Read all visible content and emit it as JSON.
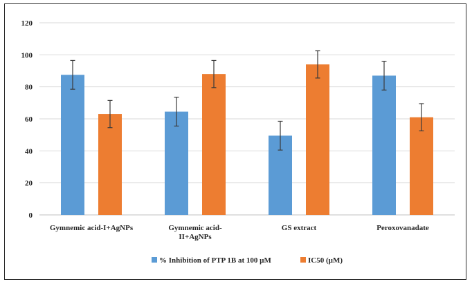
{
  "chart_data": {
    "type": "bar",
    "title": "",
    "xlabel": "",
    "ylabel": "",
    "ylim": [
      0,
      120
    ],
    "yticks": [
      0,
      20,
      40,
      60,
      80,
      100,
      120
    ],
    "grid": true,
    "legend_position": "bottom",
    "categories": [
      [
        "Gymnemic acid-I+AgNPs"
      ],
      [
        "Gymnemic acid-",
        "II+AgNPs"
      ],
      [
        "GS extract"
      ],
      [
        "Peroxovanadate"
      ]
    ],
    "series": [
      {
        "name": "% Inhibition of PTP 1B at 100 µM",
        "color": "#5b9bd5",
        "values": [
          87.5,
          64.5,
          49.5,
          87
        ],
        "errors": [
          9,
          9,
          9,
          9
        ]
      },
      {
        "name": "IC50 (µM)",
        "color": "#ed7d31",
        "values": [
          63,
          88,
          94,
          61
        ],
        "errors": [
          8.5,
          8.5,
          8.5,
          8.5
        ]
      }
    ]
  }
}
